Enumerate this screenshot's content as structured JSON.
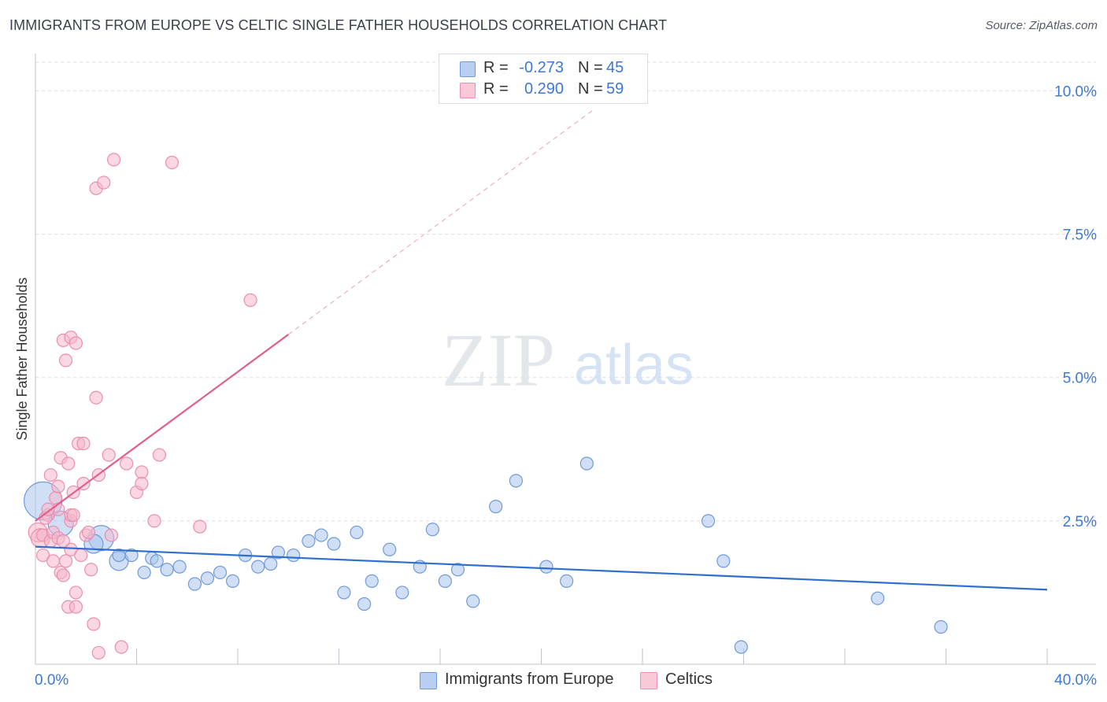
{
  "title": "IMMIGRANTS FROM EUROPE VS CELTIC SINGLE FATHER HOUSEHOLDS CORRELATION CHART",
  "source": "Source: ZipAtlas.com",
  "watermark": {
    "zip": "ZIP",
    "atlas": "atlas"
  },
  "colors": {
    "blue_fill": "#a9c4ef",
    "blue_stroke": "#6f9ad9",
    "blue_line": "#2f6fce",
    "pink_fill": "#f6b7cb",
    "pink_stroke": "#ea8fae",
    "pink_line": "#e0608a",
    "axis_text": "#3b78d8",
    "grid": "#d8dbe2"
  },
  "legend": {
    "r_label": "R =",
    "n_label": "N =",
    "series": [
      {
        "name": "Immigrants from Europe",
        "r": "-0.273",
        "n": "45"
      },
      {
        "name": "Celtics",
        "r": "0.290",
        "n": "59"
      }
    ]
  },
  "chart_data": {
    "type": "scatter",
    "title": "IMMIGRANTS FROM EUROPE VS CELTIC SINGLE FATHER HOUSEHOLDS CORRELATION CHART",
    "xlabel": "",
    "ylabel": "Single Father Households",
    "xlim": [
      0,
      40
    ],
    "ylim": [
      0,
      10.5
    ],
    "x_tick_labels": [
      "0.0%",
      "40.0%"
    ],
    "y_ticks": [
      2.5,
      5.0,
      7.5,
      10.0
    ],
    "y_tick_labels": [
      "2.5%",
      "5.0%",
      "7.5%",
      "10.0%"
    ],
    "grid": true,
    "legend_position": "bottom",
    "series": [
      {
        "name": "Immigrants from Europe",
        "r": -0.273,
        "n": 45,
        "trend": {
          "x": [
            0,
            40
          ],
          "y": [
            2.05,
            1.3
          ],
          "style": "solid"
        },
        "points": [
          {
            "x": 0.3,
            "y": 2.85,
            "s": 3
          },
          {
            "x": 1.0,
            "y": 2.45,
            "s": 2
          },
          {
            "x": 2.6,
            "y": 2.2,
            "s": 2
          },
          {
            "x": 2.3,
            "y": 2.1,
            "s": 1.5
          },
          {
            "x": 3.3,
            "y": 1.8,
            "s": 1.5
          },
          {
            "x": 3.3,
            "y": 1.9,
            "s": 1
          },
          {
            "x": 3.8,
            "y": 1.9,
            "s": 1
          },
          {
            "x": 4.6,
            "y": 1.85,
            "s": 1
          },
          {
            "x": 4.3,
            "y": 1.6,
            "s": 1
          },
          {
            "x": 4.8,
            "y": 1.8,
            "s": 1
          },
          {
            "x": 5.2,
            "y": 1.65,
            "s": 1
          },
          {
            "x": 5.7,
            "y": 1.7,
            "s": 1
          },
          {
            "x": 6.3,
            "y": 1.4,
            "s": 1
          },
          {
            "x": 6.8,
            "y": 1.5,
            "s": 1
          },
          {
            "x": 7.3,
            "y": 1.6,
            "s": 1
          },
          {
            "x": 7.8,
            "y": 1.45,
            "s": 1
          },
          {
            "x": 8.3,
            "y": 1.9,
            "s": 1
          },
          {
            "x": 8.8,
            "y": 1.7,
            "s": 1
          },
          {
            "x": 9.3,
            "y": 1.75,
            "s": 1
          },
          {
            "x": 9.6,
            "y": 1.95,
            "s": 1
          },
          {
            "x": 10.2,
            "y": 1.9,
            "s": 1
          },
          {
            "x": 10.8,
            "y": 2.15,
            "s": 1
          },
          {
            "x": 11.3,
            "y": 2.25,
            "s": 1
          },
          {
            "x": 11.8,
            "y": 2.1,
            "s": 1
          },
          {
            "x": 12.2,
            "y": 1.25,
            "s": 1
          },
          {
            "x": 12.7,
            "y": 2.3,
            "s": 1
          },
          {
            "x": 13.0,
            "y": 1.05,
            "s": 1
          },
          {
            "x": 13.3,
            "y": 1.45,
            "s": 1
          },
          {
            "x": 14.0,
            "y": 2.0,
            "s": 1
          },
          {
            "x": 14.5,
            "y": 1.25,
            "s": 1
          },
          {
            "x": 15.2,
            "y": 1.7,
            "s": 1
          },
          {
            "x": 15.7,
            "y": 2.35,
            "s": 1
          },
          {
            "x": 16.2,
            "y": 1.45,
            "s": 1
          },
          {
            "x": 16.7,
            "y": 1.65,
            "s": 1
          },
          {
            "x": 17.3,
            "y": 1.1,
            "s": 1
          },
          {
            "x": 18.2,
            "y": 2.75,
            "s": 1
          },
          {
            "x": 19.0,
            "y": 3.2,
            "s": 1
          },
          {
            "x": 20.2,
            "y": 1.7,
            "s": 1
          },
          {
            "x": 21.0,
            "y": 1.45,
            "s": 1
          },
          {
            "x": 21.8,
            "y": 3.5,
            "s": 1
          },
          {
            "x": 26.6,
            "y": 2.5,
            "s": 1
          },
          {
            "x": 27.2,
            "y": 1.8,
            "s": 1
          },
          {
            "x": 33.3,
            "y": 1.15,
            "s": 1
          },
          {
            "x": 27.9,
            "y": 0.3,
            "s": 1
          },
          {
            "x": 35.8,
            "y": 0.65,
            "s": 1
          }
        ]
      },
      {
        "name": "Celtics",
        "r": 0.29,
        "n": 59,
        "trend": {
          "x": [
            0,
            10
          ],
          "y": [
            2.5,
            5.75
          ],
          "style": "solid",
          "extended_to": {
            "x": 22.0,
            "y": 9.65
          },
          "extended_style": "dashed"
        },
        "points": [
          {
            "x": 0.1,
            "y": 2.3,
            "s": 1.5
          },
          {
            "x": 0.2,
            "y": 2.2,
            "s": 1.5
          },
          {
            "x": 0.3,
            "y": 2.25,
            "s": 1
          },
          {
            "x": 0.3,
            "y": 1.9,
            "s": 1
          },
          {
            "x": 0.5,
            "y": 2.6,
            "s": 1
          },
          {
            "x": 0.6,
            "y": 2.15,
            "s": 1
          },
          {
            "x": 0.6,
            "y": 3.3,
            "s": 1
          },
          {
            "x": 0.7,
            "y": 1.8,
            "s": 1
          },
          {
            "x": 0.7,
            "y": 2.3,
            "s": 1
          },
          {
            "x": 0.8,
            "y": 2.9,
            "s": 1
          },
          {
            "x": 0.9,
            "y": 2.2,
            "s": 1
          },
          {
            "x": 0.9,
            "y": 2.7,
            "s": 1
          },
          {
            "x": 0.9,
            "y": 3.1,
            "s": 1
          },
          {
            "x": 1.0,
            "y": 3.6,
            "s": 1
          },
          {
            "x": 1.0,
            "y": 1.6,
            "s": 1
          },
          {
            "x": 1.1,
            "y": 1.55,
            "s": 1
          },
          {
            "x": 1.1,
            "y": 5.65,
            "s": 1
          },
          {
            "x": 1.2,
            "y": 5.3,
            "s": 1
          },
          {
            "x": 1.2,
            "y": 1.8,
            "s": 1
          },
          {
            "x": 1.3,
            "y": 3.5,
            "s": 1
          },
          {
            "x": 1.3,
            "y": 1.0,
            "s": 1
          },
          {
            "x": 1.4,
            "y": 2.5,
            "s": 1
          },
          {
            "x": 1.4,
            "y": 2.0,
            "s": 1
          },
          {
            "x": 1.4,
            "y": 2.6,
            "s": 1
          },
          {
            "x": 1.4,
            "y": 5.7,
            "s": 1
          },
          {
            "x": 1.5,
            "y": 3.0,
            "s": 1
          },
          {
            "x": 1.5,
            "y": 2.6,
            "s": 1
          },
          {
            "x": 1.6,
            "y": 5.6,
            "s": 1
          },
          {
            "x": 1.6,
            "y": 1.25,
            "s": 1
          },
          {
            "x": 1.6,
            "y": 1.0,
            "s": 1
          },
          {
            "x": 1.7,
            "y": 3.85,
            "s": 1
          },
          {
            "x": 1.8,
            "y": 1.9,
            "s": 1
          },
          {
            "x": 1.9,
            "y": 3.15,
            "s": 1
          },
          {
            "x": 1.9,
            "y": 3.85,
            "s": 1
          },
          {
            "x": 2.0,
            "y": 2.25,
            "s": 1
          },
          {
            "x": 2.1,
            "y": 2.3,
            "s": 1
          },
          {
            "x": 2.2,
            "y": 1.65,
            "s": 1
          },
          {
            "x": 2.3,
            "y": 0.7,
            "s": 1
          },
          {
            "x": 2.4,
            "y": 8.3,
            "s": 1
          },
          {
            "x": 2.4,
            "y": 4.65,
            "s": 1
          },
          {
            "x": 2.5,
            "y": 3.3,
            "s": 1
          },
          {
            "x": 2.5,
            "y": 0.2,
            "s": 1
          },
          {
            "x": 2.7,
            "y": 8.4,
            "s": 1
          },
          {
            "x": 2.9,
            "y": 3.65,
            "s": 1
          },
          {
            "x": 3.0,
            "y": 2.25,
            "s": 1
          },
          {
            "x": 3.1,
            "y": 8.8,
            "s": 1
          },
          {
            "x": 3.4,
            "y": 0.3,
            "s": 1
          },
          {
            "x": 3.6,
            "y": 3.5,
            "s": 1
          },
          {
            "x": 4.0,
            "y": 3.0,
            "s": 1
          },
          {
            "x": 4.2,
            "y": 3.35,
            "s": 1
          },
          {
            "x": 4.2,
            "y": 3.15,
            "s": 1
          },
          {
            "x": 4.7,
            "y": 2.5,
            "s": 1
          },
          {
            "x": 4.9,
            "y": 3.65,
            "s": 1
          },
          {
            "x": 5.4,
            "y": 8.75,
            "s": 1
          },
          {
            "x": 6.5,
            "y": 2.4,
            "s": 1
          },
          {
            "x": 8.5,
            "y": 6.35,
            "s": 1
          },
          {
            "x": 0.4,
            "y": 2.55,
            "s": 1
          },
          {
            "x": 0.5,
            "y": 2.7,
            "s": 1
          },
          {
            "x": 1.1,
            "y": 2.15,
            "s": 1
          }
        ]
      }
    ]
  }
}
